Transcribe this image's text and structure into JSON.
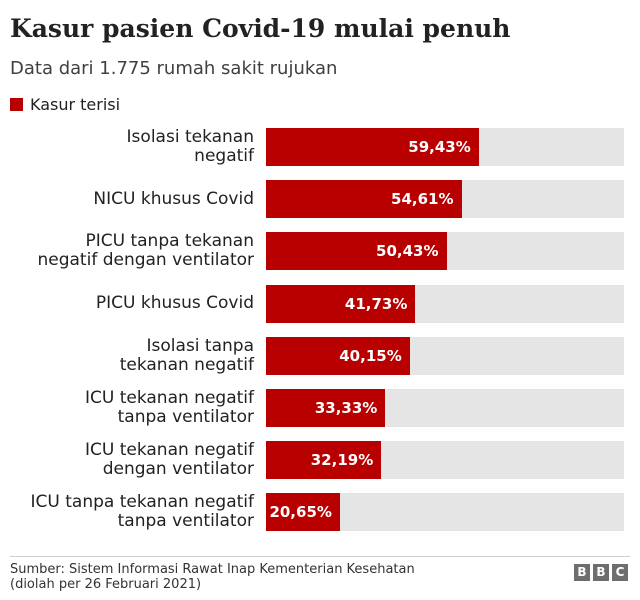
{
  "chart_data": {
    "type": "bar",
    "orientation": "horizontal",
    "title": "Kasur pasien Covid-19 mulai penuh",
    "subtitle": "Data dari 1.775 rumah sakit rujukan",
    "legend": "Kasur terisi",
    "xlim": [
      0,
      100
    ],
    "categories": [
      [
        "Isolasi tekanan",
        "negatif"
      ],
      [
        "NICU khusus Covid"
      ],
      [
        "PICU tanpa tekanan",
        "negatif dengan ventilator"
      ],
      [
        "PICU khusus Covid"
      ],
      [
        "Isolasi tanpa",
        "tekanan negatif"
      ],
      [
        "ICU tekanan negatif",
        "tanpa ventilator"
      ],
      [
        "ICU tekanan negatif",
        "dengan ventilator"
      ],
      [
        "ICU tanpa tekanan negatif",
        "tanpa ventilator"
      ]
    ],
    "values": [
      59.43,
      54.61,
      50.43,
      41.73,
      40.15,
      33.33,
      32.19,
      20.65
    ],
    "value_labels": [
      "59,43%",
      "54,61%",
      "50,43%",
      "41,73%",
      "40,15%",
      "33,33%",
      "32,19%",
      "20,65%"
    ],
    "colors": {
      "bar": "#b80000",
      "track": "#e5e5e5"
    }
  },
  "footer": {
    "source_line1": "Sumber: Sistem Informasi Rawat Inap Kementerian Kesehatan",
    "source_line2": "(diolah per 26 Februari 2021)",
    "logo_letters": [
      "B",
      "B",
      "C"
    ]
  }
}
